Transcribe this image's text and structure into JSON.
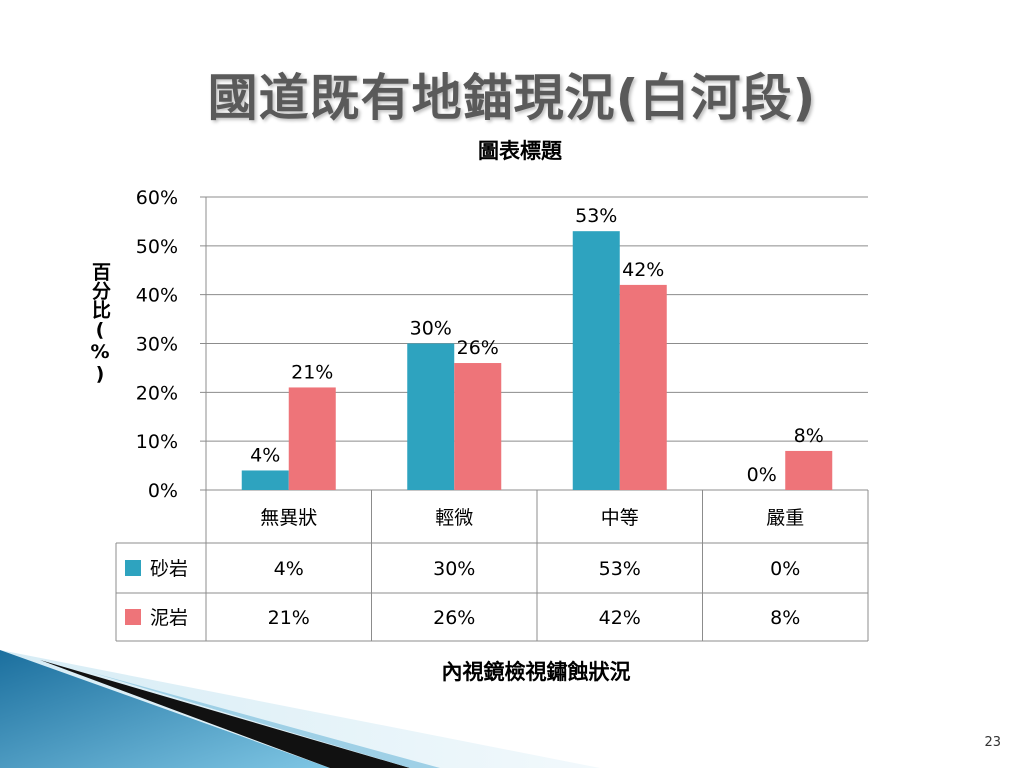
{
  "slide": {
    "title": "國道既有地錨現況(白河段)",
    "page_number": "23"
  },
  "chart_data": {
    "type": "bar",
    "title": "圖表標題",
    "ylabel": "百分比(%)",
    "xlabel": "內視鏡檢視鏽蝕狀況",
    "categories": [
      "無異狀",
      "輕微",
      "中等",
      "嚴重"
    ],
    "series": [
      {
        "name": "砂岩",
        "values": [
          4,
          30,
          53,
          0
        ],
        "labels": [
          "4%",
          "30%",
          "53%",
          "0%"
        ],
        "color": "#2ea3bf"
      },
      {
        "name": "泥岩",
        "values": [
          21,
          26,
          42,
          8
        ],
        "labels": [
          "21%",
          "26%",
          "42%",
          "8%"
        ],
        "color": "#ee7479"
      }
    ],
    "ylim": [
      0,
      60
    ],
    "yticks": [
      "0%",
      "10%",
      "20%",
      "30%",
      "40%",
      "50%",
      "60%"
    ],
    "grid": true,
    "legend": "data-table"
  }
}
